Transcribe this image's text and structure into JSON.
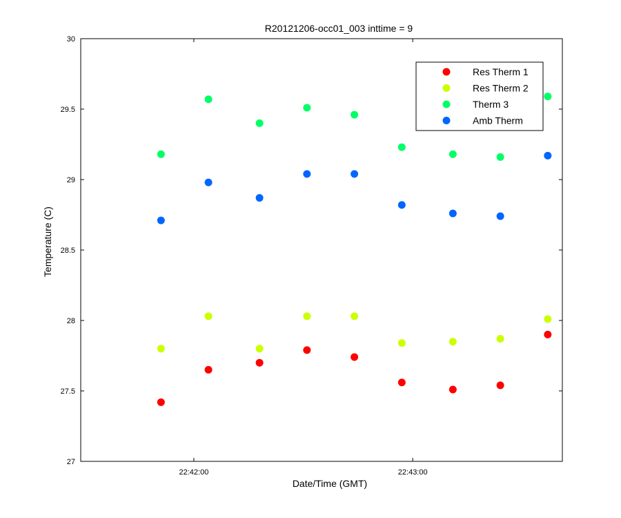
{
  "chart_data": {
    "type": "scatter",
    "title": "R20121206-occ01_003 inttime = 9",
    "xlabel": "Date/Time (GMT)",
    "ylabel": "Temperature (C)",
    "ylim": [
      27,
      30
    ],
    "xlim": [
      "22:41:29",
      "22:43:41"
    ],
    "x_ticks": [
      "22:42:00",
      "22:43:00"
    ],
    "y_ticks": [
      "27",
      "27.5",
      "28",
      "28.5",
      "29",
      "29.5",
      "30"
    ],
    "grid": false,
    "legend_position": "top-right",
    "x": [
      "22:41:51",
      "22:42:04",
      "22:42:18",
      "22:42:31",
      "22:42:44",
      "22:42:57",
      "22:43:11",
      "22:43:24",
      "22:43:37"
    ],
    "series": [
      {
        "name": "Res Therm 1",
        "color": "#ff0000",
        "values": [
          27.42,
          27.65,
          27.7,
          27.79,
          27.74,
          27.56,
          27.51,
          27.54,
          27.9
        ]
      },
      {
        "name": "Res Therm 2",
        "color": "#ccff00",
        "values": [
          27.8,
          28.03,
          27.8,
          28.03,
          28.03,
          27.84,
          27.85,
          27.87,
          28.01
        ]
      },
      {
        "name": "Therm 3",
        "color": "#00ff66",
        "values": [
          29.18,
          29.57,
          29.4,
          29.51,
          29.46,
          29.23,
          29.18,
          29.16,
          29.59
        ]
      },
      {
        "name": "Amb Therm",
        "color": "#0066ff",
        "values": [
          28.71,
          28.98,
          28.87,
          29.04,
          29.04,
          28.82,
          28.76,
          28.74,
          29.17
        ]
      }
    ]
  }
}
